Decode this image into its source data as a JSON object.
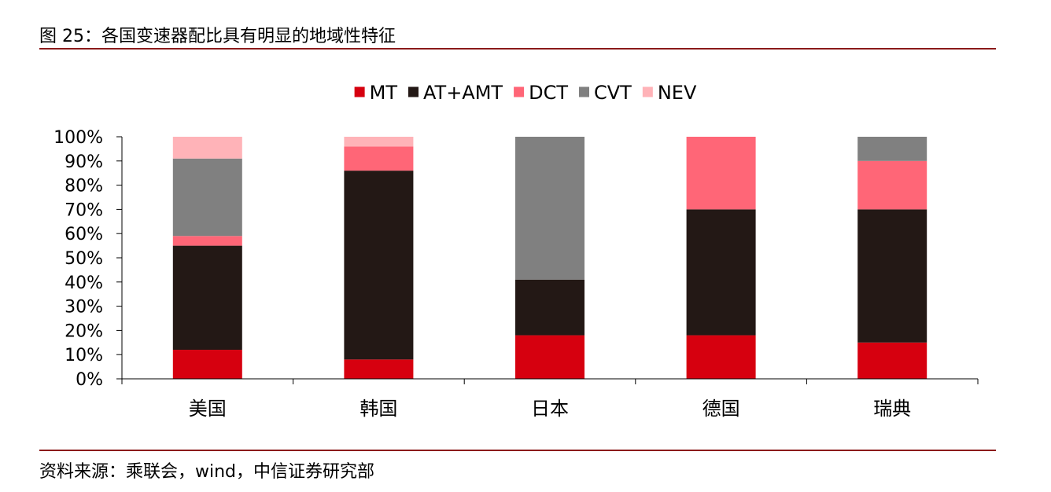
{
  "figure": {
    "title": "图 25：各国变速器配比具有明显的地域性特征",
    "source": "资料来源：乘联会，wind，中信证券研究部"
  },
  "chart_data": {
    "type": "bar",
    "stacked": true,
    "categories": [
      "美国",
      "韩国",
      "日本",
      "德国",
      "瑞典"
    ],
    "series": [
      {
        "name": "MT",
        "color": "#d6000f",
        "values": [
          12,
          8,
          18,
          18,
          15
        ]
      },
      {
        "name": "AT+AMT",
        "color": "#231815",
        "values": [
          43,
          78,
          23,
          52,
          55
        ]
      },
      {
        "name": "DCT",
        "color": "#ff6677",
        "values": [
          4,
          10,
          0,
          30,
          20
        ]
      },
      {
        "name": "CVT",
        "color": "#808080",
        "values": [
          32,
          0,
          59,
          0,
          10
        ]
      },
      {
        "name": "NEV",
        "color": "#ffb3b8",
        "values": [
          9,
          4,
          0,
          0,
          0
        ]
      }
    ],
    "yticks": [
      "0%",
      "10%",
      "20%",
      "30%",
      "40%",
      "50%",
      "60%",
      "70%",
      "80%",
      "90%",
      "100%"
    ],
    "ylim": [
      0,
      100
    ],
    "legend_position": "top-center",
    "grid": false
  }
}
